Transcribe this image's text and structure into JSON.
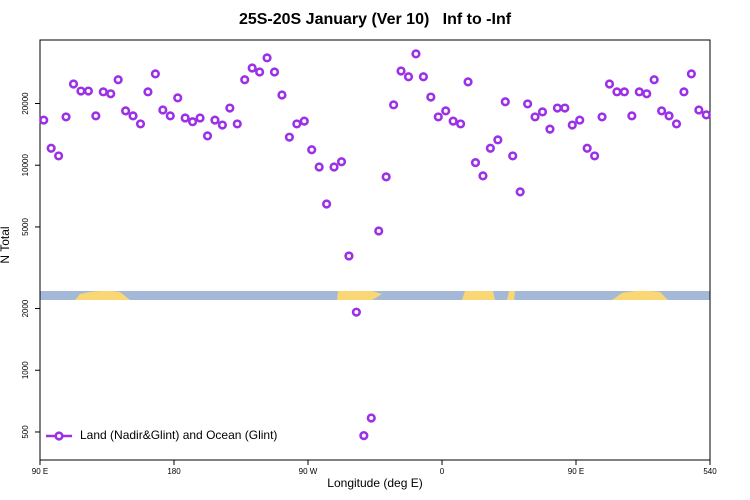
{
  "chart_data": {
    "type": "scatter",
    "title": "25S-20S January (Ver 10)   Inf to -Inf",
    "xlabel": "Longitude (deg E)",
    "ylabel": "N Total",
    "yscale": "log",
    "legend": "lower left",
    "xlim": [
      90,
      540
    ],
    "ylim": [
      365,
      40800
    ],
    "xticks": [
      {
        "value": 90,
        "label": "90 E"
      },
      180,
      {
        "value": 270,
        "label": "90 W"
      },
      {
        "value": 360,
        "label": "0"
      },
      {
        "value": 450,
        "label": "90 E"
      },
      540
    ],
    "yticks": [
      500,
      1000,
      2000,
      5000,
      10000,
      20000
    ],
    "x": [
      92.5,
      97.5,
      102.5,
      107.5,
      112.5,
      117.5,
      122.5,
      127.5,
      132.5,
      137.5,
      142.5,
      147.5,
      152.5,
      157.5,
      162.5,
      167.5,
      172.5,
      177.5,
      182.5,
      187.5,
      192.5,
      197.5,
      202.5,
      207.5,
      212.5,
      217.5,
      222.5,
      227.5,
      232.5,
      237.5,
      242.5,
      247.5,
      252.5,
      257.5,
      262.5,
      267.5,
      272.5,
      277.5,
      282.5,
      287.5,
      292.5,
      297.5,
      302.5,
      307.5,
      312.5,
      317.5,
      322.5,
      327.5,
      332.5,
      337.5,
      342.5,
      347.5,
      352.5,
      357.5,
      362.5,
      367.5,
      372.5,
      377.5,
      382.5,
      387.5,
      392.5,
      397.5,
      402.5,
      407.5,
      412.5,
      417.5,
      422.5,
      427.5,
      432.5,
      437.5,
      442.5,
      447.5,
      452.5,
      457.5,
      462.5,
      467.5,
      472.5,
      477.5,
      482.5,
      487.5,
      492.5,
      497.5,
      502.5,
      507.5,
      512.5,
      517.5,
      522.5,
      527.5,
      532.5,
      537.5
    ],
    "series": [
      {
        "name": "Land (Nadir&Glint) and Ocean (Glint)",
        "color": "#9b30e6",
        "values": [
          16600,
          12100,
          11100,
          17200,
          24900,
          23000,
          23000,
          17400,
          22800,
          22300,
          26100,
          18400,
          17400,
          15900,
          22800,
          27900,
          18600,
          17400,
          21300,
          17000,
          16300,
          17000,
          13900,
          16600,
          15700,
          19000,
          15900,
          26100,
          29800,
          28500,
          33400,
          28500,
          22000,
          13700,
          15900,
          16400,
          11900,
          9800,
          6470,
          9800,
          10400,
          3610,
          1920,
          480,
          585,
          4780,
          8770,
          19700,
          28800,
          27000,
          34900,
          27000,
          21500,
          17200,
          18400,
          16400,
          15900,
          25500,
          10300,
          8870,
          12100,
          13300,
          20400,
          11100,
          7410,
          19900,
          17200,
          18200,
          15000,
          19000,
          19000,
          15700,
          16600,
          12100,
          11100,
          17200,
          24900,
          22800,
          22800,
          17400,
          22800,
          22300,
          26100,
          18400,
          17400,
          15900,
          22800,
          27900,
          18600,
          17600
        ]
      }
    ]
  }
}
